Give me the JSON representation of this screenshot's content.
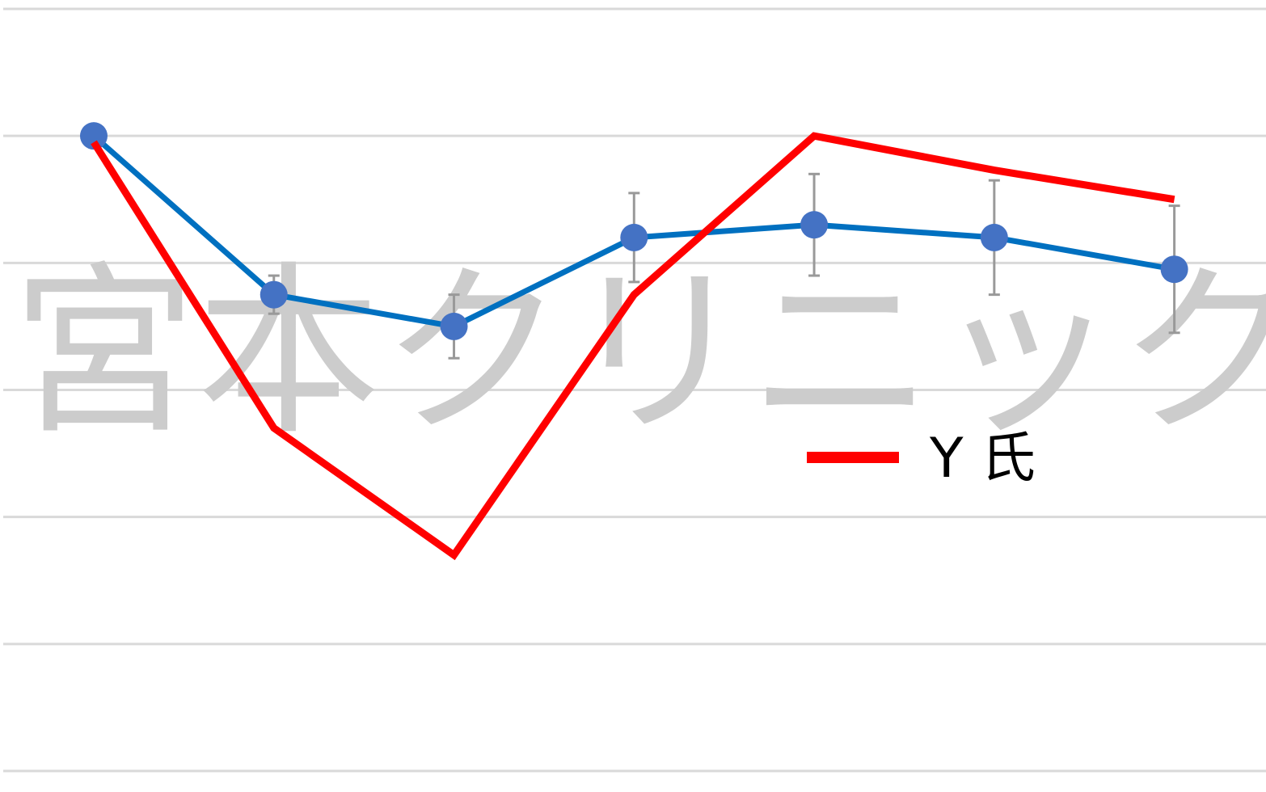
{
  "chart_data": {
    "type": "line",
    "watermark": "宮本クリニック",
    "categories": [
      null,
      null,
      null,
      null,
      null,
      null,
      null
    ],
    "ylim": [
      0,
      6
    ],
    "yticks": [
      0,
      1,
      2,
      3,
      4,
      5,
      6
    ],
    "grid": true,
    "legend": "right",
    "series": [
      {
        "color": "#0070c0",
        "marker_color": "#4472c4",
        "values": [
          5.0,
          3.75,
          3.5,
          4.2,
          4.3,
          4.2,
          3.95
        ],
        "errors": [
          0,
          0.15,
          0.25,
          0.35,
          0.4,
          0.45,
          0.5
        ]
      },
      {
        "name": "Y 氏",
        "color": "#ff0000",
        "values": [
          4.95,
          2.7,
          1.7,
          3.75,
          5.0,
          4.73,
          4.5
        ]
      }
    ]
  }
}
